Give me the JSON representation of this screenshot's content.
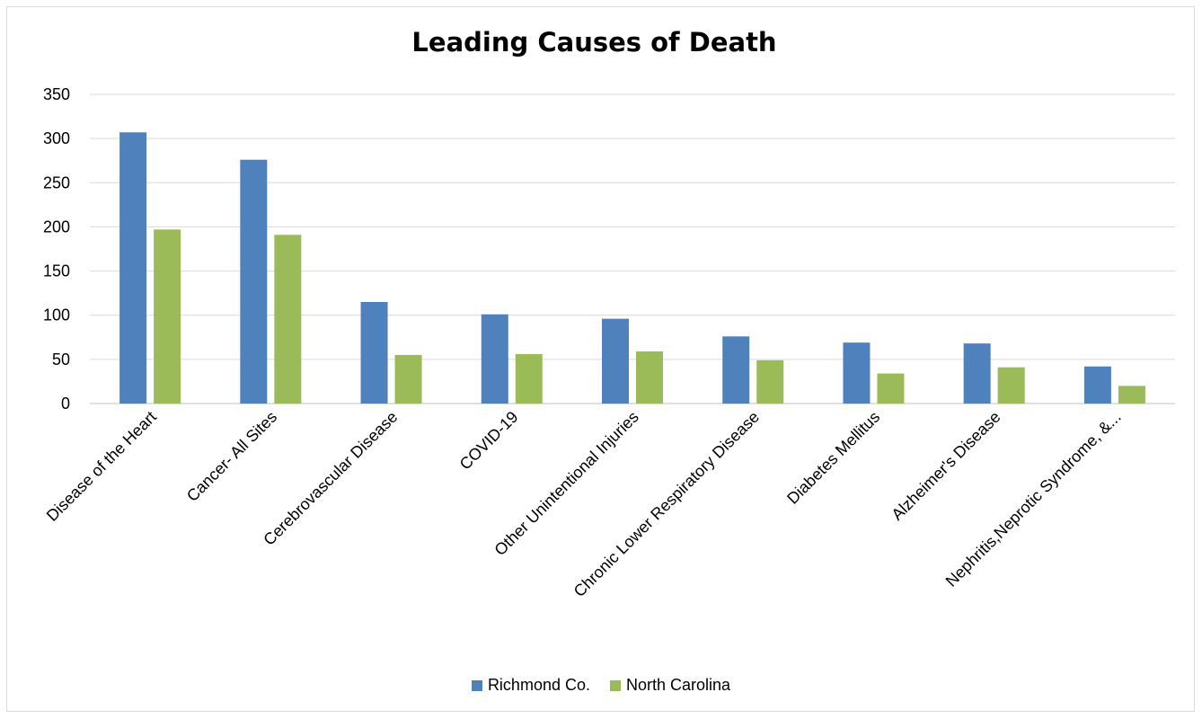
{
  "chart_data": {
    "type": "bar",
    "title": "Leading Causes of Death",
    "xlabel": "",
    "ylabel": "",
    "ylim": [
      0,
      350
    ],
    "yticks": [
      0,
      50,
      100,
      150,
      200,
      250,
      300,
      350
    ],
    "grid": true,
    "legend_position": "bottom",
    "categories": [
      "Disease of the Heart",
      "Cancer- All Sites",
      "Cerebrovascular Disease",
      "COVID-19",
      "Other Unintentional Injuries",
      "Chronic Lower Respiratory Disease",
      "Diabetes Mellitus",
      "Alzheimer's Disease",
      "Nephritis,Neprotic Syndrome, &..."
    ],
    "series": [
      {
        "name": "Richmond Co.",
        "color": "#4f81bd",
        "values": [
          307,
          276,
          115,
          101,
          96,
          76,
          69,
          68,
          42
        ]
      },
      {
        "name": "North Carolina",
        "color": "#9bbb59",
        "values": [
          197,
          191,
          55,
          56,
          59,
          49,
          34,
          41,
          20
        ]
      }
    ]
  }
}
